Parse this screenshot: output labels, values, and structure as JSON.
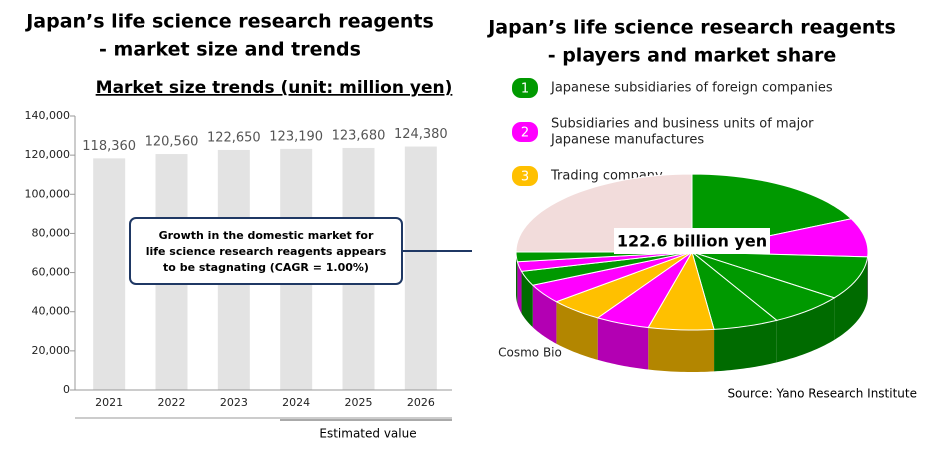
{
  "chart_data": [
    {
      "type": "bar",
      "title": [
        "Japan’s life science research reagents",
        "- market size and trends"
      ],
      "subtitle": "Market size trends (unit: million yen)",
      "categories": [
        "2021",
        "2022",
        "2023",
        "2024",
        "2025",
        "2026"
      ],
      "values": [
        118360,
        120560,
        122650,
        123190,
        123680,
        124380
      ],
      "value_labels": [
        "118,360",
        "120,560",
        "122,650",
        "123,190",
        "123,680",
        "124,380"
      ],
      "color": "#e3e3e3",
      "ylim": [
        0,
        140000
      ],
      "yticks": [
        0,
        {
          "value": 20000,
          "label": "20,000"
        },
        {
          "value": 40000,
          "label": "40,000"
        },
        {
          "value": 60000,
          "label": "60,000"
        },
        {
          "value": 80000,
          "label": "80,000"
        },
        {
          "value": 100000,
          "label": "100,000"
        },
        {
          "value": 120000,
          "label": "120,000"
        },
        {
          "value": 140000,
          "label": "140,000"
        }
      ],
      "annotation": [
        "Growth in the domestic market for",
        "life science research reagents appears",
        "to be stagnating (CAGR = 1.00%)"
      ],
      "estimated_label": "Estimated value"
    },
    {
      "type": "pie",
      "title": [
        "Japan’s life science research reagents",
        "- players and market share"
      ],
      "legend": [
        {
          "label": "1",
          "name": [
            "Japanese subsidiaries of foreign companies"
          ],
          "color": "#009900"
        },
        {
          "label": "2",
          "name": [
            "Subsidiaries and business units of major",
            " Japanese manufactures"
          ],
          "color": "#ff00ff"
        },
        {
          "label": "3",
          "name": [
            "Trading company"
          ],
          "color": "#ffc000"
        }
      ],
      "categories": [
        null,
        null,
        null,
        null,
        null,
        null,
        null,
        "Cosmo Bio",
        null,
        null,
        null,
        null,
        null
      ],
      "values": [
        18,
        8,
        9,
        7,
        6,
        6,
        5,
        5,
        4,
        3,
        2,
        2,
        25
      ],
      "colors": [
        "#009900",
        "#ff00ff",
        "#009900",
        "#009900",
        "#009900",
        "#ffc000",
        "#ff00ff",
        "#ffc000",
        "#ff00ff",
        "#009900",
        "#ff00ff",
        "#009900",
        "#f2dcdb"
      ],
      "center_label": "122.6 billion yen",
      "source": "Source: Yano Research Institute"
    }
  ]
}
